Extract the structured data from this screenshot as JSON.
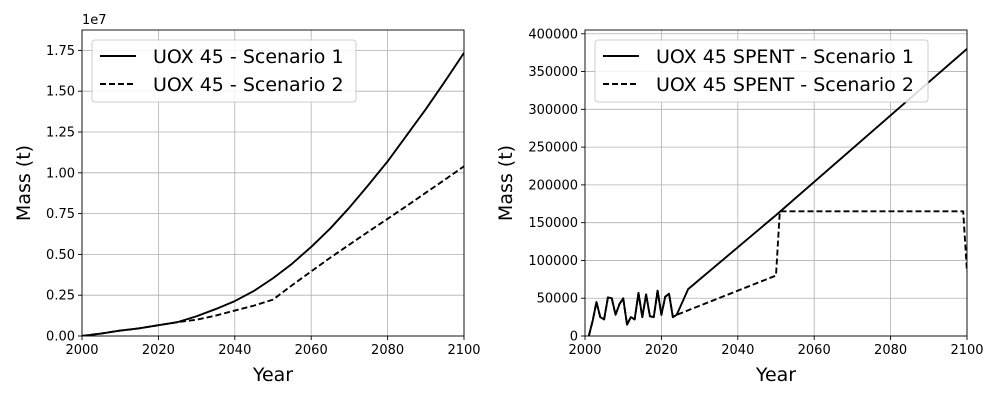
{
  "chart_data": [
    {
      "type": "line",
      "xlabel": "Year",
      "ylabel": "Mass (t)",
      "offset_label": "1e7",
      "xlim": [
        2000,
        2100
      ],
      "ylim": [
        0,
        18750000
      ],
      "xticks": [
        2000,
        2020,
        2040,
        2060,
        2080,
        2100
      ],
      "xtick_labels": [
        "2000",
        "2020",
        "2040",
        "2060",
        "2080",
        "2100"
      ],
      "yticks": [
        0,
        2500000,
        5000000,
        7500000,
        10000000,
        12500000,
        15000000,
        17500000
      ],
      "ytick_labels": [
        "0.00",
        "0.25",
        "0.50",
        "0.75",
        "1.00",
        "1.25",
        "1.50",
        "1.75"
      ],
      "grid": true,
      "legend": "top-left",
      "series": [
        {
          "name": "UOX 45 - Scenario 1",
          "style": "solid",
          "color": "#000000",
          "x": [
            2000,
            2005,
            2010,
            2015,
            2020,
            2025,
            2030,
            2035,
            2040,
            2045,
            2050,
            2055,
            2060,
            2065,
            2070,
            2075,
            2080,
            2085,
            2090,
            2095,
            2100
          ],
          "y": [
            0,
            150000,
            330000,
            470000,
            660000,
            850000,
            1210000,
            1650000,
            2140000,
            2760000,
            3540000,
            4430000,
            5460000,
            6590000,
            7870000,
            9260000,
            10700000,
            12300000,
            13900000,
            15600000,
            17350000
          ]
        },
        {
          "name": "UOX 45 - Scenario 2",
          "style": "dashed",
          "color": "#000000",
          "x": [
            2000,
            2005,
            2010,
            2015,
            2020,
            2025,
            2030,
            2035,
            2040,
            2045,
            2050,
            2055,
            2060,
            2065,
            2070,
            2075,
            2080,
            2085,
            2090,
            2095,
            2100
          ],
          "y": [
            0,
            150000,
            330000,
            470000,
            660000,
            850000,
            1000000,
            1250000,
            1560000,
            1860000,
            2230000,
            3110000,
            3960000,
            4800000,
            5600000,
            6400000,
            7180000,
            7970000,
            8780000,
            9580000,
            10400000
          ]
        }
      ]
    },
    {
      "type": "line",
      "xlabel": "Year",
      "ylabel": "Mass (t)",
      "xlim": [
        2000,
        2100
      ],
      "ylim": [
        0,
        405000
      ],
      "xticks": [
        2000,
        2020,
        2040,
        2060,
        2080,
        2100
      ],
      "xtick_labels": [
        "2000",
        "2020",
        "2040",
        "2060",
        "2080",
        "2100"
      ],
      "yticks": [
        0,
        50000,
        100000,
        150000,
        200000,
        250000,
        300000,
        350000,
        400000
      ],
      "ytick_labels": [
        "0",
        "50000",
        "100000",
        "150000",
        "200000",
        "250000",
        "300000",
        "350000",
        "400000"
      ],
      "grid": true,
      "legend": "top-left",
      "series": [
        {
          "name": "UOX 45 SPENT - Scenario 1",
          "style": "solid",
          "color": "#000000",
          "x": [
            2001,
            2002,
            2003,
            2004,
            2005,
            2006,
            2007,
            2008,
            2009,
            2010,
            2011,
            2012,
            2013,
            2014,
            2015,
            2016,
            2017,
            2018,
            2019,
            2020,
            2021,
            2022,
            2023,
            2024,
            2027,
            2050,
            2100
          ],
          "y": [
            0,
            20000,
            45000,
            25000,
            22000,
            51000,
            50000,
            28000,
            42000,
            50000,
            15000,
            25000,
            22000,
            57000,
            25000,
            55000,
            26000,
            25000,
            60000,
            28000,
            52000,
            56000,
            25000,
            28000,
            62000,
            160000,
            380000
          ]
        },
        {
          "name": "UOX 45 SPENT - Scenario 2",
          "style": "dashed",
          "color": "#000000",
          "x": [
            2001,
            2002,
            2003,
            2004,
            2005,
            2006,
            2007,
            2008,
            2009,
            2010,
            2011,
            2012,
            2013,
            2014,
            2015,
            2016,
            2017,
            2018,
            2019,
            2020,
            2021,
            2022,
            2023,
            2024,
            2050,
            2051,
            2099,
            2100
          ],
          "y": [
            0,
            20000,
            45000,
            25000,
            22000,
            51000,
            50000,
            28000,
            42000,
            50000,
            15000,
            25000,
            22000,
            57000,
            25000,
            55000,
            26000,
            25000,
            60000,
            28000,
            52000,
            56000,
            25000,
            28000,
            80000,
            165000,
            165000,
            85000
          ]
        }
      ]
    }
  ]
}
